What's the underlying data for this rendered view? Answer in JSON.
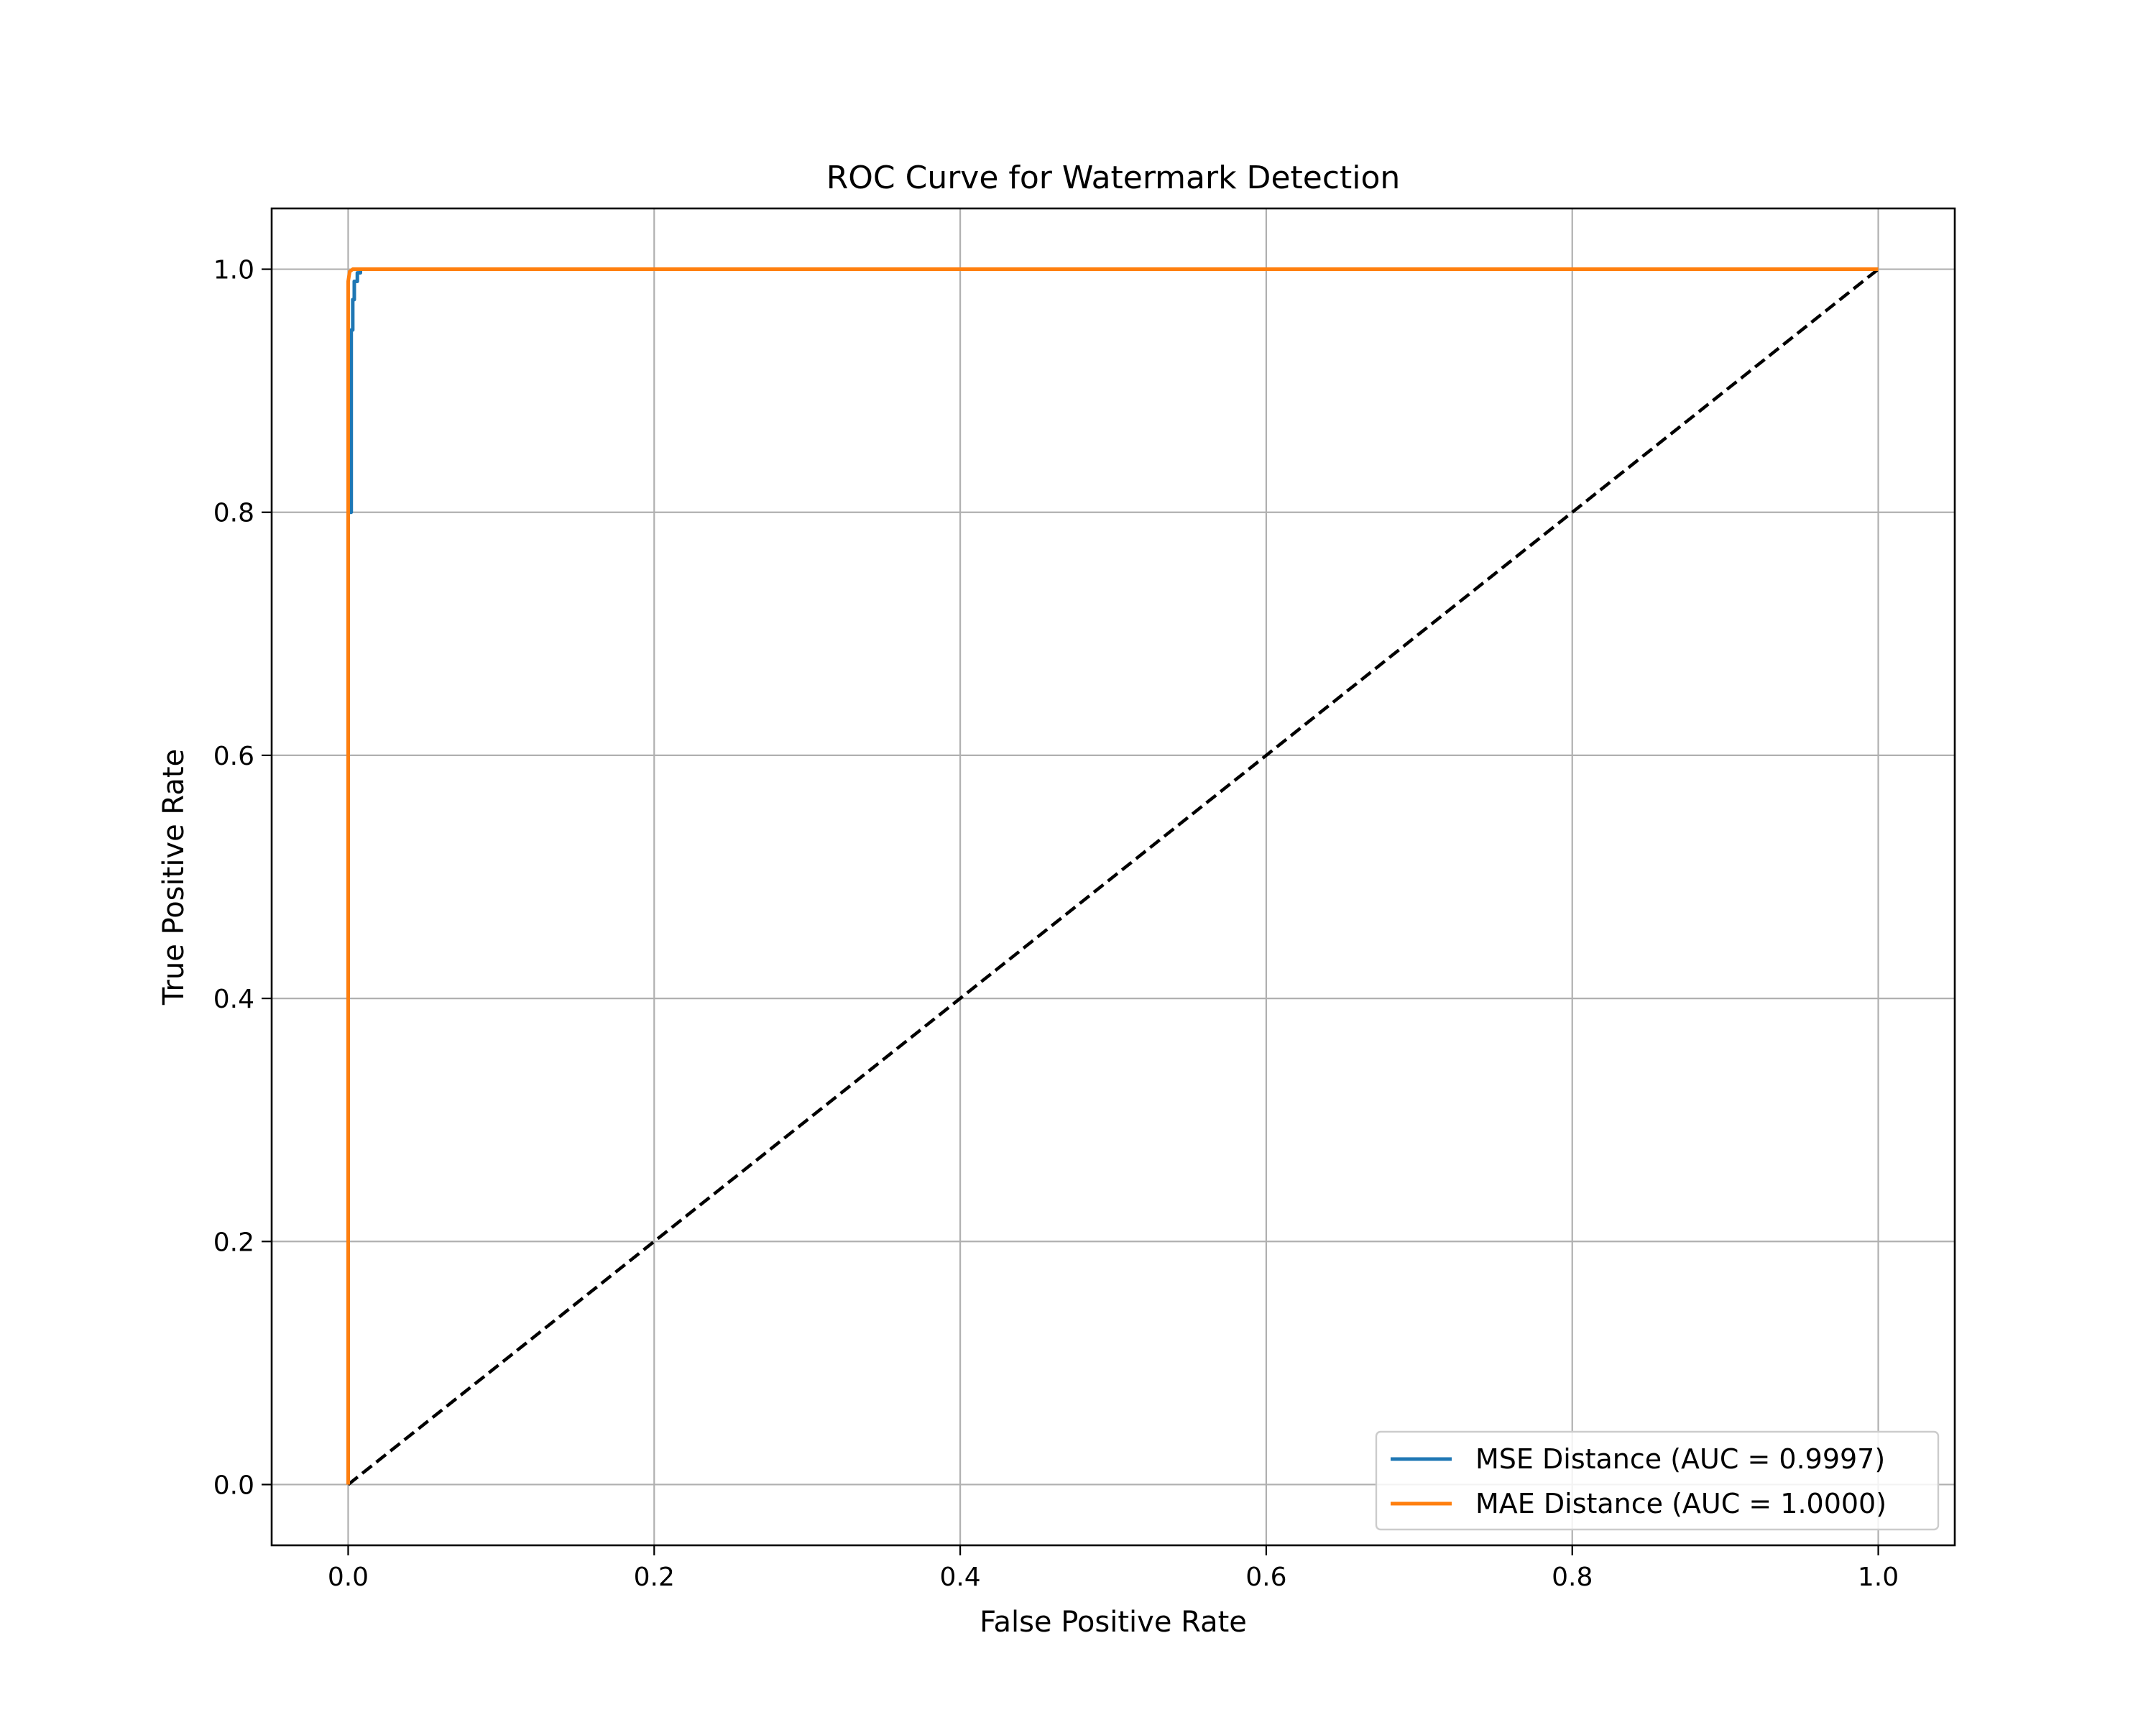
{
  "chart_data": {
    "type": "line",
    "title": "ROC Curve for Watermark Detection",
    "xlabel": "False Positive Rate",
    "ylabel": "True Positive Rate",
    "xlim": [
      -0.05,
      1.05
    ],
    "ylim": [
      -0.05,
      1.05
    ],
    "xticks": [
      0.0,
      0.2,
      0.4,
      0.6,
      0.8,
      1.0
    ],
    "xtick_labels": [
      "0.0",
      "0.2",
      "0.4",
      "0.6",
      "0.8",
      "1.0"
    ],
    "yticks": [
      0.0,
      0.2,
      0.4,
      0.6,
      0.8,
      1.0
    ],
    "ytick_labels": [
      "0.0",
      "0.2",
      "0.4",
      "0.6",
      "0.8",
      "1.0"
    ],
    "grid": true,
    "legend_position": "lower-right",
    "series": [
      {
        "name": "MSE Distance (AUC = 0.9997)",
        "color": "#1f77b4",
        "x": [
          0.0,
          0.0,
          0.002,
          0.002,
          0.003,
          0.003,
          0.004,
          0.004,
          0.006,
          0.006,
          0.008,
          0.008,
          0.015,
          1.0
        ],
        "y": [
          0.0,
          0.8,
          0.8,
          0.95,
          0.95,
          0.975,
          0.975,
          0.99,
          0.99,
          0.997,
          0.997,
          1.0,
          1.0,
          1.0
        ]
      },
      {
        "name": "MAE Distance (AUC = 1.0000)",
        "color": "#ff7f0e",
        "x": [
          0.0,
          0.0,
          0.001,
          0.003,
          1.0
        ],
        "y": [
          0.0,
          0.99,
          0.998,
          1.0,
          1.0
        ]
      }
    ],
    "reference_line": {
      "x": [
        0.0,
        1.0
      ],
      "y": [
        0.0,
        1.0
      ],
      "color": "#000000",
      "style": "dashed"
    }
  }
}
